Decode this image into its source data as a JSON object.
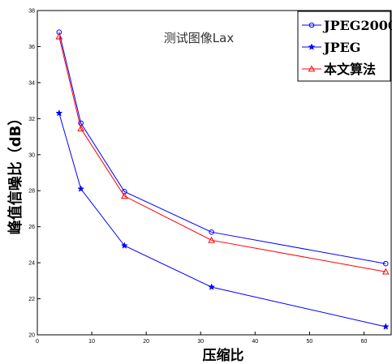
{
  "chart_data": {
    "type": "line",
    "title": "测试图像Lax",
    "xlabel": "压缩比",
    "ylabel": "峰值信噪比（dB）",
    "xlim": [
      0,
      65
    ],
    "ylim": [
      20,
      38
    ],
    "xticks": [
      "0",
      "10",
      "20",
      "30",
      "40",
      "50",
      "60"
    ],
    "yticks": [
      "20",
      "22",
      "24",
      "26",
      "28",
      "30",
      "32",
      "34",
      "36",
      "38"
    ],
    "x": [
      4,
      8,
      16,
      32,
      64
    ],
    "series": [
      {
        "name": "JPEG2000",
        "color": "#0000ff",
        "marker": "circle",
        "values": [
          36.8,
          31.75,
          27.95,
          25.7,
          23.95
        ]
      },
      {
        "name": "JPEG",
        "color": "#0000ff",
        "marker": "star",
        "values": [
          32.3,
          28.1,
          24.95,
          22.65,
          20.45
        ]
      },
      {
        "name": "本文算法",
        "color": "#ff0000",
        "marker": "triangle",
        "values": [
          36.55,
          31.45,
          27.7,
          25.25,
          23.5
        ]
      }
    ],
    "grid": false,
    "legend_position": "top-right"
  }
}
